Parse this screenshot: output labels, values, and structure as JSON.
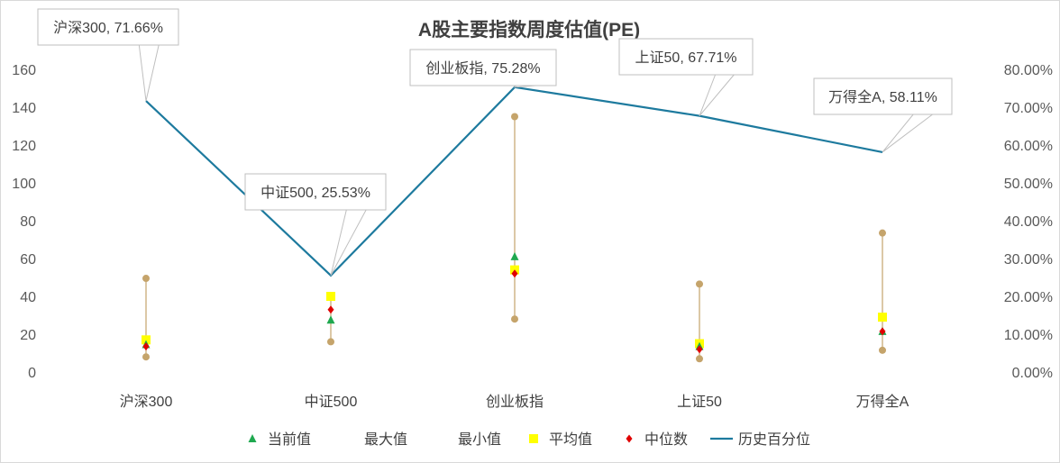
{
  "chart_data": {
    "type": "line",
    "title": "A股主要指数周度估值(PE)",
    "categories": [
      "沪深300",
      "中证500",
      "创业板指",
      "上证50",
      "万得全A"
    ],
    "y_left": {
      "min": 0,
      "max": 160,
      "step": 20,
      "ticks": [
        "0",
        "20",
        "40",
        "60",
        "80",
        "100",
        "120",
        "140",
        "160"
      ]
    },
    "y_right": {
      "min": 0,
      "max": 80,
      "step": 10,
      "ticks": [
        "0.00%",
        "10.00%",
        "20.00%",
        "30.00%",
        "40.00%",
        "50.00%",
        "60.00%",
        "70.00%",
        "80.00%"
      ]
    },
    "series": [
      {
        "name": "当前值",
        "axis": "left",
        "marker": "triangle",
        "color": "#1fa84f",
        "values": [
          14.5,
          27.5,
          61,
          13.5,
          21.5
        ]
      },
      {
        "name": "最大值",
        "axis": "left",
        "marker": "circle",
        "color": "#c5a46b",
        "values": [
          49.5,
          40,
          135,
          46.5,
          73.5
        ]
      },
      {
        "name": "最小值",
        "axis": "left",
        "marker": "circle",
        "color": "#c5a46b",
        "values": [
          8,
          16,
          28,
          7,
          11.5
        ]
      },
      {
        "name": "平均值",
        "axis": "left",
        "marker": "square",
        "color": "#ffff00",
        "values": [
          17,
          40,
          54,
          15,
          29
        ]
      },
      {
        "name": "中位数",
        "axis": "left",
        "marker": "diamond",
        "color": "#e00000",
        "values": [
          13.5,
          33,
          52,
          12,
          21.5
        ]
      },
      {
        "name": "历史百分位",
        "axis": "right",
        "marker": "line",
        "color": "#1d7a9e",
        "values": [
          71.66,
          25.53,
          75.28,
          67.71,
          58.11
        ]
      }
    ],
    "annotations": [
      "沪深300, 71.66%",
      "中证500, 25.53%",
      "创业板指, 75.28%",
      "上证50, 67.71%",
      "万得全A, 58.11%"
    ],
    "legend_position": "bottom",
    "grid": false
  }
}
